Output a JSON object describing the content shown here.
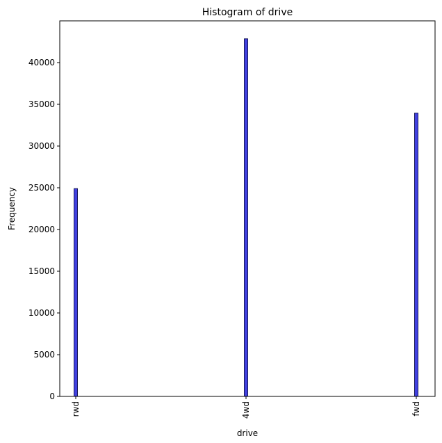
{
  "chart_data": {
    "type": "bar",
    "title": "Histogram of drive",
    "xlabel": "drive",
    "ylabel": "Frequency",
    "categories": [
      "rwd",
      "4wd",
      "fwd"
    ],
    "values": [
      24900,
      42850,
      33950
    ],
    "ylim": [
      0,
      45000
    ],
    "yticks": [
      0,
      5000,
      10000,
      15000,
      20000,
      25000,
      30000,
      35000,
      40000
    ],
    "grid": false,
    "colors": {
      "bar_fill": "#4141e0",
      "bar_edge": "#1a1a5a"
    }
  }
}
